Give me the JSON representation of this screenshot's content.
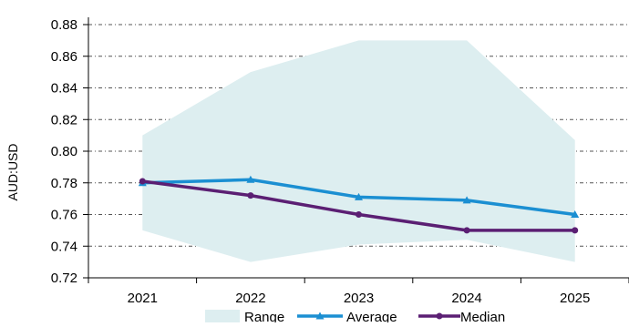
{
  "chart_data": {
    "type": "line",
    "categories": [
      "2021",
      "2022",
      "2023",
      "2024",
      "2025"
    ],
    "ylabel": "AUD:USD",
    "xlabel": "",
    "title": "",
    "ylim": [
      0.72,
      0.88
    ],
    "yticks": [
      "0.72",
      "0.74",
      "0.76",
      "0.78",
      "0.80",
      "0.82",
      "0.84",
      "0.86",
      "0.88"
    ],
    "grid": "horizontal dashed",
    "legend_position": "bottom",
    "range": {
      "name": "Range",
      "low": [
        0.75,
        0.73,
        0.741,
        0.744,
        0.73
      ],
      "high": [
        0.81,
        0.85,
        0.87,
        0.87,
        0.807
      ],
      "color": "#ddeef0"
    },
    "series": [
      {
        "name": "Average",
        "values": [
          0.78,
          0.782,
          0.771,
          0.769,
          0.76
        ],
        "color": "#1b8fd2",
        "marker": "triangle"
      },
      {
        "name": "Median",
        "values": [
          0.781,
          0.772,
          0.76,
          0.75,
          0.75
        ],
        "color": "#5b1f73",
        "marker": "circle"
      }
    ]
  }
}
